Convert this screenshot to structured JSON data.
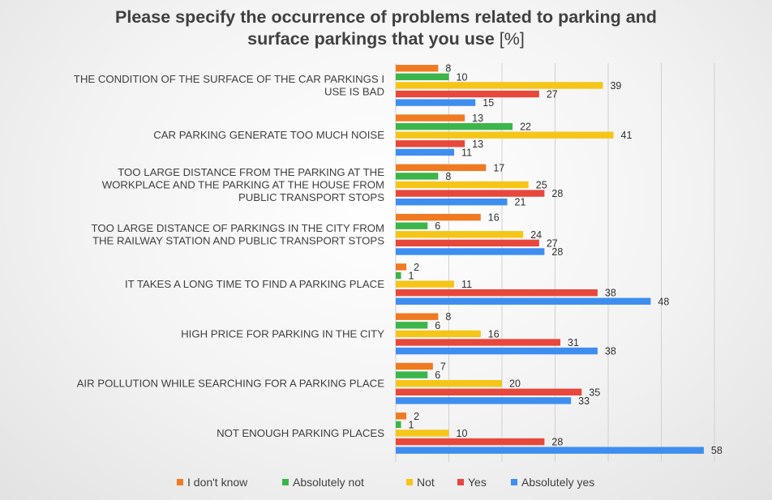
{
  "chart_data": {
    "type": "bar",
    "orientation": "horizontal",
    "title_lines": [
      "Please specify the occurrence of problems related to parking and",
      "surface parkings that you use [%]"
    ],
    "xlim": [
      0,
      60
    ],
    "grid": true,
    "legend_position": "bottom",
    "categories": [
      [
        "THE CONDITION OF THE SURFACE OF THE CAR PARKINGS I",
        "USE IS BAD"
      ],
      [
        "CAR PARKING GENERATE TOO MUCH NOISE"
      ],
      [
        "TOO LARGE DISTANCE FROM THE PARKING AT THE",
        "WORKPLACE AND THE PARKING AT THE HOUSE FROM",
        "PUBLIC TRANSPORT STOPS"
      ],
      [
        "TOO LARGE DISTANCE OF PARKINGS IN THE CITY FROM",
        "THE RAILWAY STATION AND PUBLIC TRANSPORT STOPS"
      ],
      [
        "IT TAKES A LONG TIME TO FIND A PARKING PLACE"
      ],
      [
        "HIGH PRICE FOR PARKING IN THE CITY"
      ],
      [
        "AIR POLLUTION WHILE SEARCHING FOR A PARKING PLACE"
      ],
      [
        "NOT ENOUGH PARKING PLACES"
      ]
    ],
    "series": [
      {
        "name": "I don't know",
        "color": "#f07a22",
        "values": [
          8,
          13,
          17,
          16,
          2,
          8,
          7,
          2
        ]
      },
      {
        "name": "Absolutely not",
        "color": "#3cb54a",
        "values": [
          10,
          22,
          8,
          6,
          1,
          6,
          6,
          1
        ]
      },
      {
        "name": "Not",
        "color": "#f5c518",
        "values": [
          39,
          41,
          25,
          24,
          11,
          16,
          20,
          10
        ]
      },
      {
        "name": "Yes",
        "color": "#e8473c",
        "values": [
          27,
          13,
          28,
          27,
          38,
          31,
          35,
          28
        ]
      },
      {
        "name": "Absolutely yes",
        "color": "#3e8ef0",
        "values": [
          15,
          11,
          21,
          28,
          48,
          38,
          33,
          58
        ]
      }
    ]
  }
}
